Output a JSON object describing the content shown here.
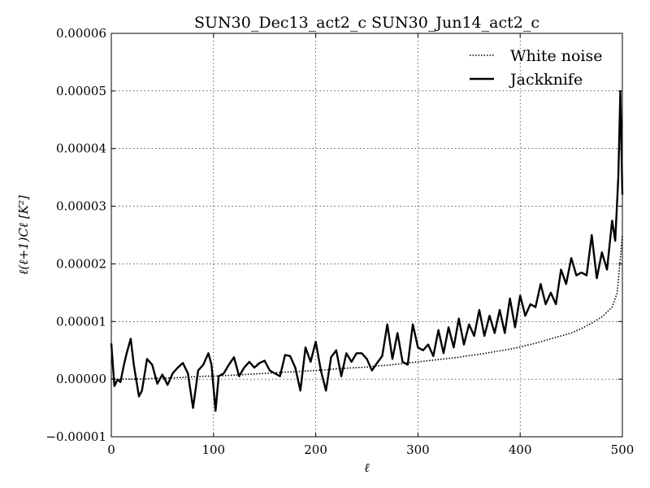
{
  "chart_data": {
    "type": "line",
    "title": "SUN30_Dec13_act2_c SUN30_Jun14_act2_c",
    "xlabel": "ℓ",
    "ylabel": "ℓ(ℓ+1)Cℓ [K²]",
    "xlim": [
      0,
      500
    ],
    "ylim": [
      -1e-05,
      6e-05
    ],
    "xticks": [
      0,
      100,
      200,
      300,
      400,
      500
    ],
    "xtick_labels": [
      "0",
      "100",
      "200",
      "300",
      "400",
      "500"
    ],
    "yticks": [
      -1e-05,
      0.0,
      1e-05,
      2e-05,
      3e-05,
      4e-05,
      5e-05,
      6e-05
    ],
    "ytick_labels": [
      "−0.00001",
      "0.00000",
      "0.00001",
      "0.00002",
      "0.00003",
      "0.00004",
      "0.00005",
      "0.00006"
    ],
    "grid": true,
    "legend_position": "top-right",
    "series": [
      {
        "name": "White noise",
        "style": "dotted",
        "color": "#000000",
        "x": [
          0,
          10,
          20,
          30,
          40,
          50,
          60,
          70,
          80,
          90,
          100,
          110,
          120,
          130,
          140,
          150,
          160,
          170,
          180,
          190,
          200,
          210,
          220,
          230,
          240,
          250,
          260,
          270,
          280,
          290,
          300,
          310,
          320,
          330,
          340,
          350,
          360,
          370,
          380,
          390,
          400,
          410,
          420,
          430,
          440,
          450,
          460,
          470,
          480,
          490,
          495,
          498,
          500
        ],
        "values": [
          0.0,
          0.0,
          0.0,
          0.0,
          1e-07,
          2e-07,
          2e-07,
          3e-07,
          4e-07,
          5e-07,
          5e-07,
          6e-07,
          7e-07,
          8e-07,
          9e-07,
          1e-06,
          1.1e-06,
          1.2e-06,
          1.3e-06,
          1.4e-06,
          1.5e-06,
          1.6e-06,
          1.8e-06,
          1.9e-06,
          2e-06,
          2.1e-06,
          2.3e-06,
          2.4e-06,
          2.6e-06,
          2.8e-06,
          3e-06,
          3.2e-06,
          3.4e-06,
          3.6e-06,
          3.8e-06,
          4.1e-06,
          4.3e-06,
          4.6e-06,
          4.9e-06,
          5.2e-06,
          5.6e-06,
          6e-06,
          6.5e-06,
          7e-06,
          7.5e-06,
          8e-06,
          8.8e-06,
          9.7e-06,
          1.08e-05,
          1.25e-05,
          1.5e-05,
          2.1e-05,
          2.5e-05
        ]
      },
      {
        "name": "Jackknife",
        "style": "solid",
        "color": "#000000",
        "x": [
          0,
          3,
          6,
          9,
          12,
          15,
          19,
          22,
          27,
          30,
          35,
          40,
          45,
          50,
          55,
          60,
          65,
          70,
          75,
          80,
          85,
          90,
          95,
          98,
          102,
          105,
          110,
          115,
          120,
          125,
          130,
          135,
          140,
          145,
          150,
          155,
          160,
          165,
          170,
          175,
          180,
          185,
          190,
          195,
          200,
          205,
          210,
          215,
          220,
          225,
          230,
          235,
          240,
          245,
          250,
          255,
          260,
          265,
          270,
          275,
          280,
          285,
          290,
          295,
          300,
          305,
          310,
          315,
          320,
          325,
          330,
          335,
          340,
          345,
          350,
          355,
          360,
          365,
          370,
          375,
          380,
          385,
          390,
          395,
          400,
          405,
          410,
          415,
          420,
          425,
          430,
          435,
          440,
          445,
          450,
          455,
          460,
          465,
          470,
          475,
          480,
          485,
          490,
          493,
          496,
          498,
          500
        ],
        "values": [
          6.2e-06,
          -1.2e-06,
          -1e-07,
          -5e-07,
          2.2e-06,
          4.5e-06,
          7e-06,
          2.5e-06,
          -3e-06,
          -2e-06,
          3.5e-06,
          2.5e-06,
          -8e-07,
          8e-07,
          -1e-06,
          1e-06,
          2e-06,
          2.8e-06,
          1e-06,
          -5e-06,
          1.5e-06,
          2.5e-06,
          4.5e-06,
          2.5e-06,
          -5.5e-06,
          5e-07,
          1e-06,
          2.5e-06,
          3.8e-06,
          5e-07,
          2e-06,
          3e-06,
          2e-06,
          2.8e-06,
          3.2e-06,
          1.5e-06,
          1e-06,
          5e-07,
          4.2e-06,
          4e-06,
          2e-06,
          -2e-06,
          5.5e-06,
          3e-06,
          6.5e-06,
          1.5e-06,
          -2e-06,
          3.8e-06,
          5e-06,
          5e-07,
          4.5e-06,
          3e-06,
          4.5e-06,
          4.5e-06,
          3.5e-06,
          1.5e-06,
          2.8e-06,
          4e-06,
          9.5e-06,
          3.5e-06,
          8e-06,
          3e-06,
          2.5e-06,
          9.5e-06,
          5.5e-06,
          5e-06,
          6e-06,
          4e-06,
          8.5e-06,
          4.5e-06,
          9e-06,
          5.5e-06,
          1.05e-05,
          6e-06,
          9.5e-06,
          7.5e-06,
          1.2e-05,
          7.5e-06,
          1.1e-05,
          8e-06,
          1.2e-05,
          8e-06,
          1.4e-05,
          9e-06,
          1.45e-05,
          1.1e-05,
          1.3e-05,
          1.25e-05,
          1.65e-05,
          1.3e-05,
          1.5e-05,
          1.3e-05,
          1.9e-05,
          1.65e-05,
          2.1e-05,
          1.8e-05,
          1.85e-05,
          1.8e-05,
          2.5e-05,
          1.75e-05,
          2.2e-05,
          1.9e-05,
          2.75e-05,
          2.4e-05,
          3.5e-05,
          5e-05,
          3.2e-05
        ]
      }
    ]
  }
}
